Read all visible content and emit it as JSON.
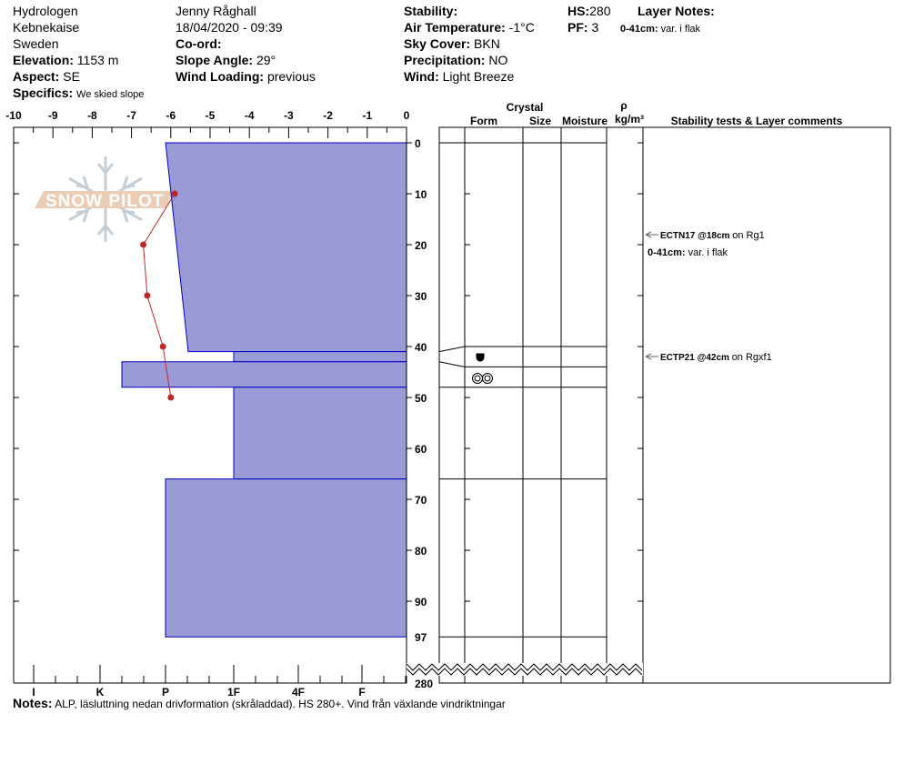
{
  "header": {
    "observer": "Hydrologen",
    "location": "Kebnekaise",
    "country": "Sweden",
    "elevation_label": "Elevation:",
    "elevation": "1153 m",
    "aspect_label": "Aspect:",
    "aspect": "SE",
    "specifics_label": "Specifics:",
    "specifics": "We skied slope",
    "name": "Jenny Råghall",
    "datetime": "18/04/2020 - 09:39",
    "coord_label": "Co-ord:",
    "slope_label": "Slope Angle:",
    "slope": "29°",
    "wind_loading_label": "Wind Loading:",
    "wind_loading": "previous",
    "stability_label": "Stability:",
    "air_temp_label": "Air Temperature:",
    "air_temp": "-1°C",
    "sky_label": "Sky Cover:",
    "sky": "BKN",
    "precip_label": "Precipitation:",
    "precip": "NO",
    "wind_label": "Wind:",
    "wind": "Light Breeze",
    "hs_label": "HS:",
    "hs": "280",
    "pf_label": "PF:",
    "pf": "3",
    "layer_notes_label": "Layer Notes:",
    "layer_note_range": "0-41cm:",
    "layer_note_text": "var. i flak"
  },
  "logo": {
    "text": "SNOW PILOT"
  },
  "table_headers": {
    "crystal": "Crystal",
    "form": "Form",
    "size": "Size",
    "moisture": "Moisture",
    "rho": "ρ",
    "density_unit": "kg/m³",
    "stability": "Stability tests & Layer comments"
  },
  "notes": {
    "label": "Notes:",
    "text": "ALP, läsluttning nedan drivformation (skråladdad). HS 280+. Vind från växlande vindriktningar"
  },
  "comments": [
    {
      "test": "ECTN17 @18cm",
      "on": "on Rg1",
      "depth": 18
    },
    {
      "test": "ECTP21 @42cm",
      "on": "on Rgxf1",
      "depth": 42
    }
  ],
  "layer_comment": {
    "range": "0-41cm:",
    "text": "var. i flak",
    "depth": 20.5
  },
  "chart_data": {
    "type": "snow-profile",
    "temperature_axis": {
      "ticks": [
        "-10",
        "-9",
        "-8",
        "-7",
        "-6",
        "-5",
        "-4",
        "-3",
        "-2",
        "-1",
        "0"
      ],
      "range": [
        -10,
        0
      ]
    },
    "hardness_axis": {
      "ticks": [
        "I",
        "K",
        "P",
        "1F",
        "4F",
        "F"
      ]
    },
    "depth_axis": {
      "ticks": [
        "0",
        "10",
        "20",
        "30",
        "40",
        "50",
        "60",
        "70",
        "80",
        "90",
        "97"
      ],
      "bottom_label": "280",
      "range": [
        0,
        97
      ],
      "unit": "cm"
    },
    "temperature_profile": [
      {
        "depth": 10,
        "temp": -5.9
      },
      {
        "depth": 20,
        "temp": -6.7
      },
      {
        "depth": 30,
        "temp": -6.6
      },
      {
        "depth": 40,
        "temp": -6.2
      },
      {
        "depth": 50,
        "temp": -6.0
      }
    ],
    "layers": [
      {
        "top": 0,
        "bottom": 41,
        "hardness_top": "P",
        "hardness_bottom": "P-"
      },
      {
        "top": 41,
        "bottom": 43,
        "hardness_top": "1F",
        "hardness_bottom": "1F"
      },
      {
        "top": 43,
        "bottom": 48,
        "hardness_top": "K-",
        "hardness_bottom": "K-"
      },
      {
        "top": 48,
        "bottom": 66,
        "hardness_top": "1F",
        "hardness_bottom": "1F"
      },
      {
        "top": 66,
        "bottom": 97,
        "hardness_top": "P",
        "hardness_bottom": "P"
      }
    ],
    "grain_forms": [
      {
        "top": 40,
        "bottom": 44,
        "form": "rounding-faceted-icon"
      },
      {
        "top": 44,
        "bottom": 48,
        "form": "melt-freeze-clusters-icon"
      }
    ],
    "table_layer_boundaries": [
      0,
      40,
      44,
      48,
      66,
      97
    ],
    "colors": {
      "layer_fill": "#9a9ad6",
      "layer_stroke": "#0000c0",
      "temperature": "#c0272d"
    }
  }
}
